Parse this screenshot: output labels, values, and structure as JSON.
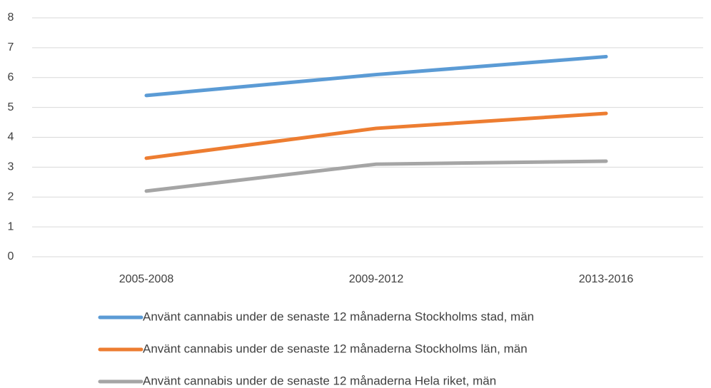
{
  "chart_data": {
    "type": "line",
    "categories": [
      "2005-2008",
      "2009-2012",
      "2013-2016"
    ],
    "series": [
      {
        "name": "Använt cannabis under de senaste 12 månaderna Stockholms stad, män",
        "color": "#5b9bd5",
        "values": [
          5.4,
          6.1,
          6.7
        ]
      },
      {
        "name": "Använt cannabis under de senaste 12 månaderna Stockholms län, män",
        "color": "#ed7d31",
        "values": [
          3.3,
          4.3,
          4.8
        ]
      },
      {
        "name": "Använt cannabis under de senaste 12 månaderna Hela riket, män",
        "color": "#a5a5a5",
        "values": [
          2.2,
          3.1,
          3.2
        ]
      }
    ],
    "ylim": [
      0,
      8
    ],
    "yticks": [
      0,
      1,
      2,
      3,
      4,
      5,
      6,
      7,
      8
    ],
    "grid": true,
    "legend": "bottom"
  }
}
